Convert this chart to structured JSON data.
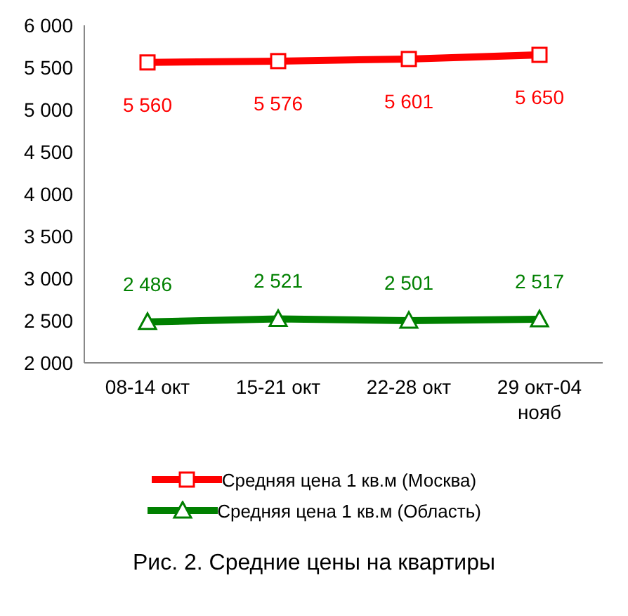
{
  "chart_data": {
    "type": "line",
    "categories": [
      "08-14 окт",
      "15-21 окт",
      "22-28 окт",
      "29 окт-04 нояб"
    ],
    "series": [
      {
        "name": "Средняя цена 1 кв.м (Москва)",
        "color": "#ff0000",
        "marker": "square",
        "values": [
          5560,
          5576,
          5601,
          5650
        ],
        "value_labels": [
          "5 560",
          "5 576",
          "5 601",
          "5 650"
        ]
      },
      {
        "name": "Средняя цена 1 кв.м (Область)",
        "color": "#008000",
        "marker": "triangle",
        "values": [
          2486,
          2521,
          2501,
          2517
        ],
        "value_labels": [
          "2 486",
          "2 521",
          "2 501",
          "2 517"
        ]
      }
    ],
    "ylim": [
      2000,
      6000
    ],
    "yticks": [
      {
        "value": 2000,
        "label": "2 000"
      },
      {
        "value": 2500,
        "label": "2 500"
      },
      {
        "value": 3000,
        "label": "3 000"
      },
      {
        "value": 3500,
        "label": "3 500"
      },
      {
        "value": 4000,
        "label": "4 000"
      },
      {
        "value": 4500,
        "label": "4 500"
      },
      {
        "value": 5000,
        "label": "5 000"
      },
      {
        "value": 5500,
        "label": "5 500"
      },
      {
        "value": 6000,
        "label": "6 000"
      }
    ],
    "grid": false,
    "legend": "bottom",
    "annotations": [
      "Рис. 2. Средние цены на квартиры"
    ]
  }
}
